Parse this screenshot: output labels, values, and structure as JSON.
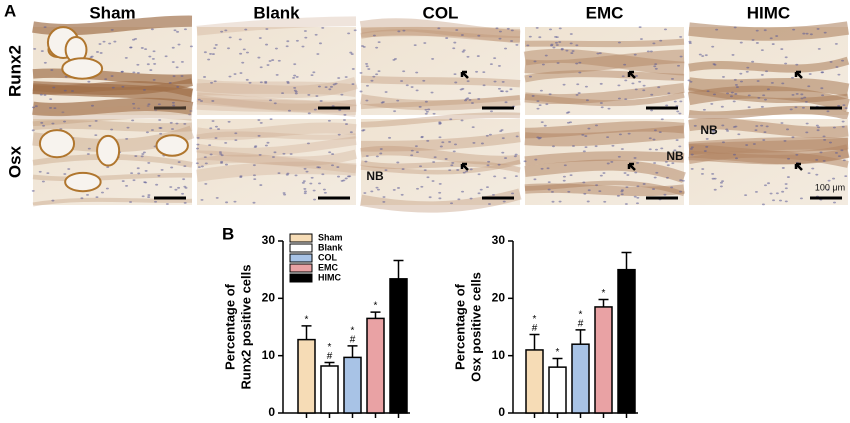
{
  "panel_a": {
    "label": "A",
    "columns": [
      "Sham",
      "Blank",
      "COL",
      "EMC",
      "HIMC"
    ],
    "rows": [
      "Runx2",
      "Osx"
    ],
    "annotations": [
      {
        "row": 1,
        "col": 2,
        "text": "NB"
      },
      {
        "row": 1,
        "col": 3,
        "text": "NB"
      },
      {
        "row": 1,
        "col": 4,
        "text": "NB"
      }
    ],
    "scale_bar": "100 μm"
  },
  "panel_b": {
    "label": "B"
  },
  "chart_data": [
    {
      "type": "bar",
      "ylabel": [
        "Percentage of",
        "Runx2 positive cells"
      ],
      "categories": [
        "Sham",
        "Blank",
        "COL",
        "EMC",
        "HIMC"
      ],
      "values": [
        12.8,
        8.2,
        9.7,
        16.5,
        23.4
      ],
      "errors": [
        2.4,
        0.6,
        2.0,
        1.1,
        3.2
      ],
      "colors": [
        "#f6dcb6",
        "#ffffff",
        "#a8c3e6",
        "#e9a2a4",
        "#000000"
      ],
      "markers": [
        [
          "*"
        ],
        [
          "*",
          "#"
        ],
        [
          "*",
          "#"
        ],
        [
          "*"
        ],
        null
      ],
      "ylim": [
        0,
        30
      ],
      "yticks": [
        0,
        10,
        20,
        30
      ],
      "legend": true
    },
    {
      "type": "bar",
      "ylabel": [
        "Percentage of",
        "Osx positive cells"
      ],
      "values": [
        11.0,
        8.0,
        12.0,
        18.5,
        25.0
      ],
      "errors": [
        2.7,
        1.5,
        2.5,
        1.3,
        3.0
      ],
      "colors": [
        "#f6dcb6",
        "#ffffff",
        "#a8c3e6",
        "#e9a2a4",
        "#000000"
      ],
      "markers": [
        [
          "*",
          "#"
        ],
        [
          "*"
        ],
        [
          "*",
          "#"
        ],
        [
          "*"
        ],
        null
      ],
      "ylim": [
        0,
        30
      ],
      "yticks": [
        0,
        10,
        20,
        30
      ],
      "legend": false
    }
  ]
}
